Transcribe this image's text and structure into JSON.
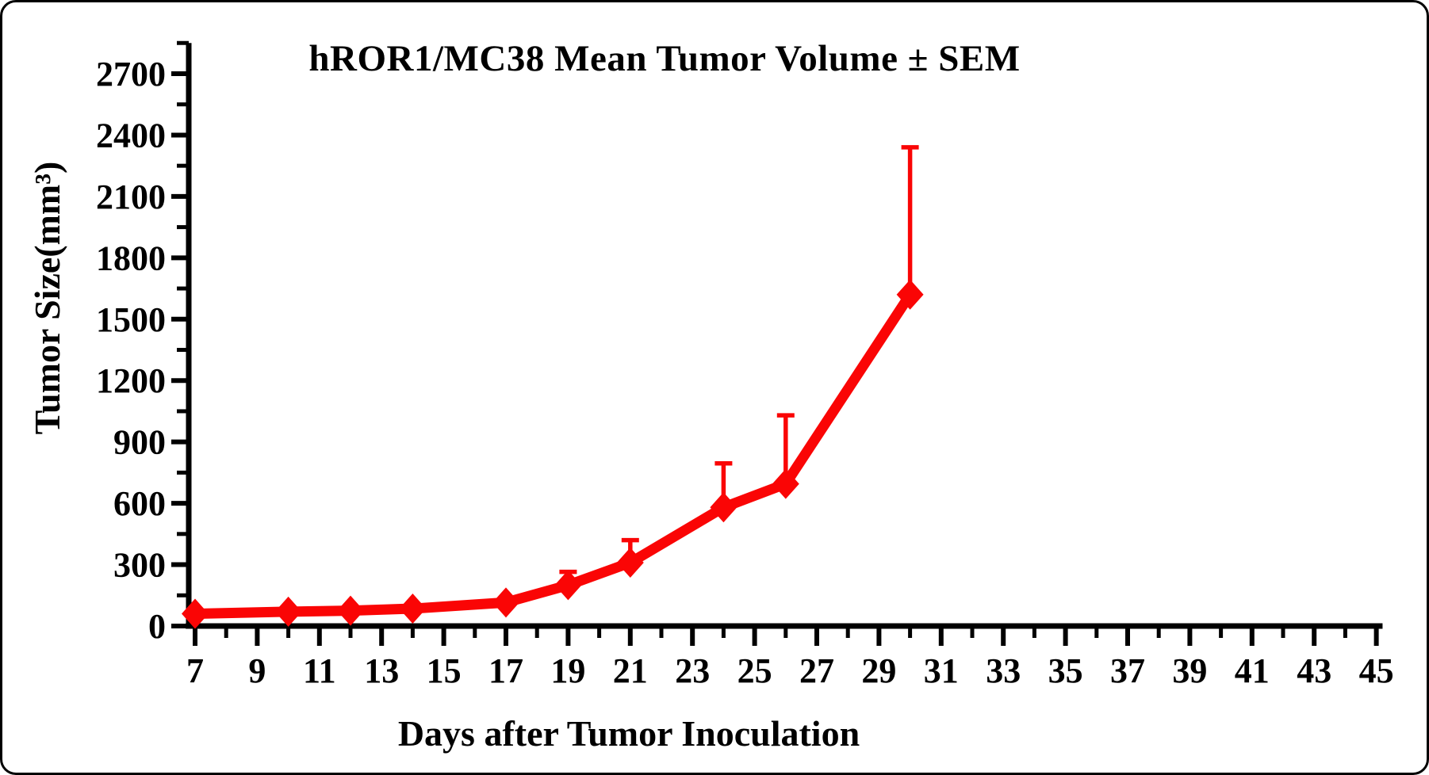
{
  "chart_data": {
    "type": "line",
    "title": "hROR1/MC38 Mean Tumor Volume ± SEM",
    "xlabel": "Days after Tumor Inoculation",
    "ylabel": "Tumor Size(mm³)",
    "grid": false,
    "legend": false,
    "background_color": "#ffffff",
    "axis_color": "#000000",
    "x_axis": {
      "label": "Days after Tumor Inoculation",
      "min": 6.8,
      "max": 45.2,
      "major_ticks": [
        7,
        9,
        11,
        13,
        15,
        17,
        19,
        21,
        23,
        25,
        27,
        29,
        31,
        33,
        35,
        37,
        39,
        41,
        43,
        45
      ],
      "minor_ticks": [
        8,
        10,
        12,
        14,
        16,
        18,
        20,
        22,
        24,
        26,
        28,
        30,
        32,
        34,
        36,
        38,
        40,
        42,
        44
      ]
    },
    "y_axis": {
      "label": "Tumor Size(mm³)",
      "min": 0,
      "max": 2850,
      "major_ticks": [
        0,
        300,
        600,
        900,
        1200,
        1500,
        1800,
        2100,
        2400,
        2700
      ],
      "minor_ticks": [
        150,
        450,
        750,
        1050,
        1350,
        1650,
        1950,
        2250,
        2550,
        2850
      ]
    },
    "series": [
      {
        "name": "hROR1/MC38 mean tumor volume",
        "color": "#fa0505",
        "marker": "diamond",
        "error_direction": "up",
        "x": [
          7,
          10,
          12,
          14,
          17,
          19,
          21,
          24,
          26,
          30
        ],
        "y": [
          60,
          70,
          75,
          85,
          115,
          200,
          310,
          580,
          695,
          1620
        ],
        "sem_upper": [
          0,
          0,
          0,
          0,
          0,
          65,
          110,
          215,
          335,
          720
        ]
      }
    ]
  }
}
